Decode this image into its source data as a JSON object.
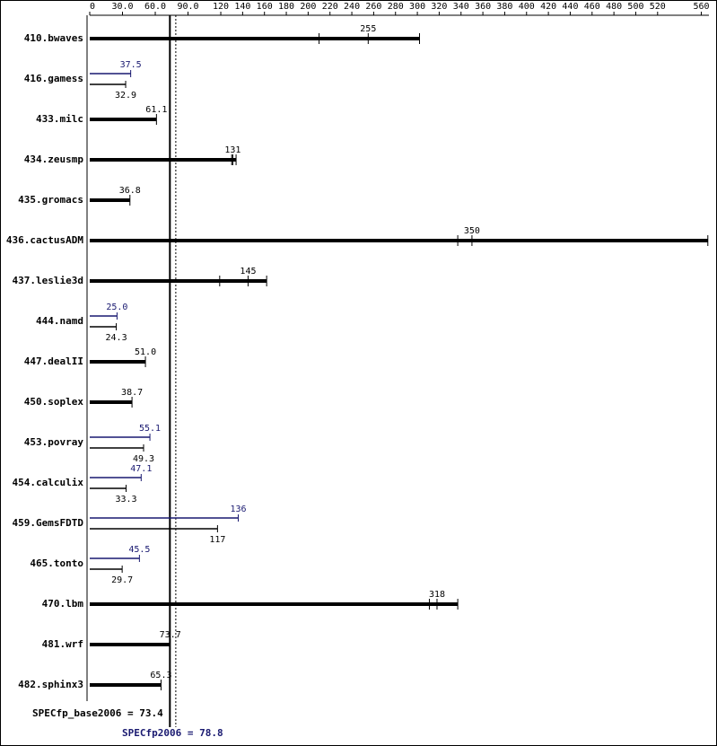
{
  "chart_data": {
    "type": "bar",
    "orientation": "horizontal",
    "categories": [
      "410.bwaves",
      "416.gamess",
      "433.milc",
      "434.zeusmp",
      "435.gromacs",
      "436.cactusADM",
      "437.leslie3d",
      "444.namd",
      "447.dealII",
      "450.soplex",
      "453.povray",
      "454.calculix",
      "459.GemsFDTD",
      "465.tonto",
      "470.lbm",
      "481.wrf",
      "482.sphinx3"
    ],
    "series": [
      {
        "color": "#000000",
        "values": [
          255,
          32.9,
          61.1,
          131,
          36.8,
          350,
          145,
          24.3,
          51.0,
          38.7,
          49.3,
          33.3,
          117,
          29.7,
          318,
          73.7,
          65.3
        ],
        "value_labels": [
          "255",
          "32.9",
          "61.1",
          "131",
          "36.8",
          "350",
          "145",
          "24.3",
          "51.0",
          "38.7",
          "49.3",
          "33.3",
          "117",
          "29.7",
          "318",
          "73.7",
          "65.3"
        ],
        "runs": [
          [
            210,
            255,
            302
          ],
          null,
          null,
          [
            130,
            131,
            134
          ],
          null,
          [
            337,
            350,
            566
          ],
          [
            119,
            145,
            162
          ],
          null,
          null,
          null,
          null,
          null,
          null,
          null,
          [
            311,
            318,
            337
          ],
          null,
          null
        ]
      },
      {
        "color": "#191970",
        "values": [
          null,
          37.5,
          null,
          null,
          null,
          null,
          null,
          25.0,
          null,
          null,
          55.1,
          47.1,
          136,
          45.5,
          null,
          null,
          null
        ],
        "value_labels": [
          null,
          "37.5",
          null,
          null,
          null,
          null,
          null,
          "25.0",
          null,
          null,
          "55.1",
          "47.1",
          "136",
          "45.5",
          null,
          null,
          null
        ]
      }
    ],
    "xlim": [
      0,
      567
    ],
    "xticks": [
      0,
      {
        "value": 30,
        "label": "30.0"
      },
      {
        "value": 60,
        "label": "60.0"
      },
      {
        "value": 90,
        "label": "90.0"
      },
      120,
      140,
      160,
      180,
      200,
      220,
      240,
      260,
      280,
      300,
      320,
      340,
      360,
      380,
      400,
      420,
      440,
      460,
      480,
      500,
      520,
      560
    ],
    "summary": {
      "base_label": "SPECfp_base2006 =",
      "base": 73.4,
      "peak_label": "SPECfp2006 =",
      "peak": 78.8
    }
  }
}
